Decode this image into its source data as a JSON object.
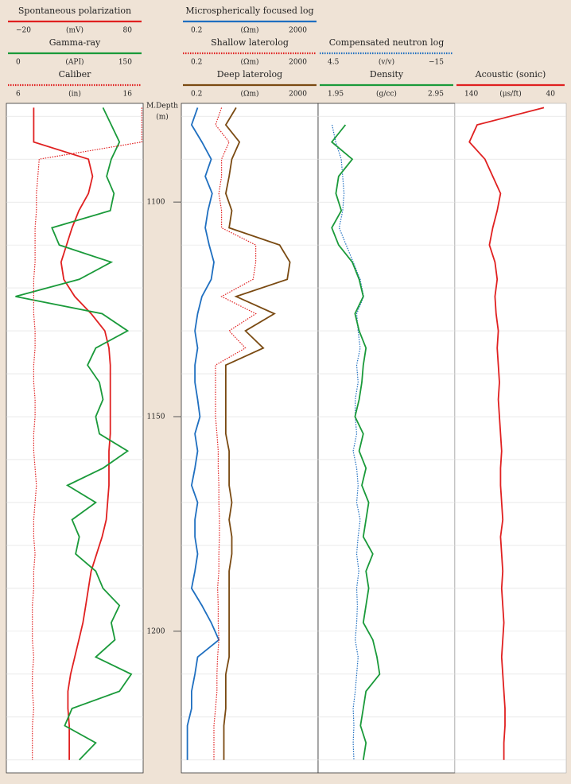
{
  "chart_data": {
    "type": "well-log",
    "depth_label": "M.Depth",
    "depth_unit": "(m)",
    "ylim": [
      1077,
      1233
    ],
    "yticks": [
      1100,
      1150,
      1200
    ],
    "ygrid": [
      1080,
      1090,
      1100,
      1110,
      1120,
      1130,
      1140,
      1150,
      1160,
      1170,
      1180,
      1190,
      1200,
      1210,
      1220,
      1230
    ],
    "depth": [
      1078,
      1082,
      1086,
      1090,
      1094,
      1098,
      1102,
      1106,
      1110,
      1114,
      1118,
      1122,
      1126,
      1130,
      1134,
      1138,
      1142,
      1146,
      1150,
      1154,
      1158,
      1162,
      1166,
      1170,
      1174,
      1178,
      1182,
      1186,
      1190,
      1194,
      1198,
      1202,
      1206,
      1210,
      1214,
      1218,
      1222,
      1226,
      1230
    ],
    "tracks": [
      {
        "log": false,
        "curves": [
          {
            "name": "Spontaneous polarization",
            "color": "#e02020",
            "style": "solid",
            "unit": "(mV)",
            "scale": [
              {
                "value": -20,
                "label": "−20"
              },
              80
            ],
            "values": [
              0,
              0,
              0,
              40,
              43,
              40,
              33,
              28,
              24,
              20,
              22,
              30,
              42,
              52,
              55,
              56,
              56,
              56,
              56,
              56,
              55,
              55,
              55,
              54,
              53,
              50,
              46,
              42,
              40,
              38,
              36,
              33,
              30,
              27,
              25,
              25,
              26,
              26,
              26
            ]
          },
          {
            "name": "Gamma-ray",
            "color": "#1a9a3a",
            "style": "solid",
            "unit": "(API)",
            "scale": [
              0,
              150
            ],
            "values": [
              106,
              115,
              124,
              115,
              110,
              118,
              114,
              50,
              58,
              115,
              80,
              10,
              105,
              133,
              98,
              89,
              102,
              106,
              98,
              102,
              133,
              106,
              67,
              98,
              72,
              80,
              76,
              98,
              106,
              124,
              115,
              119,
              98,
              137,
              124,
              72,
              64,
              98,
              80
            ]
          },
          {
            "name": "Caliber",
            "color": "#e02020",
            "style": "dotted",
            "unit": "(in)",
            "scale": [
              6,
              16
            ],
            "values": [
              15.9,
              15.9,
              15.9,
              8.4,
              8.3,
              8.2,
              8.2,
              8.1,
              8.1,
              8.1,
              8.0,
              8.0,
              8.0,
              8.1,
              8.1,
              8.0,
              8.0,
              8.1,
              8.1,
              8.0,
              8.0,
              8.1,
              8.2,
              8.1,
              8.0,
              8.0,
              8.1,
              8.0,
              8.0,
              7.9,
              7.9,
              7.9,
              8.0,
              7.9,
              7.9,
              8.0,
              7.9,
              7.9,
              7.9
            ]
          }
        ]
      },
      {
        "log": true,
        "curves": [
          {
            "name": "Microspherically focused log",
            "color": "#1f6fc0",
            "style": "solid",
            "unit": "(Ωm)",
            "scale": [
              0.2,
              2000
            ],
            "values": [
              0.6,
              0.4,
              0.8,
              1.5,
              1.0,
              1.6,
              1.2,
              1.0,
              1.3,
              1.8,
              1.5,
              0.8,
              0.6,
              0.5,
              0.6,
              0.5,
              0.5,
              0.6,
              0.7,
              0.5,
              0.6,
              0.5,
              0.4,
              0.6,
              0.5,
              0.5,
              0.6,
              0.5,
              0.4,
              0.8,
              1.5,
              2.5,
              0.6,
              0.5,
              0.4,
              0.4,
              0.3,
              0.3,
              0.3
            ]
          },
          {
            "name": "Shallow laterolog",
            "color": "#e02020",
            "style": "dotted",
            "unit": "(Ωm)",
            "scale": [
              0.2,
              2000
            ],
            "values": [
              3,
              2,
              5,
              3,
              3,
              2.5,
              3,
              3,
              30,
              30,
              25,
              3,
              30,
              5,
              15,
              2,
              2,
              2,
              2,
              2.2,
              2.4,
              2.4,
              2.5,
              2.5,
              2.6,
              2.6,
              2.5,
              2.5,
              2.3,
              2.4,
              2.4,
              2.5,
              2.3,
              2.2,
              2.2,
              2,
              1.8,
              1.8,
              1.8
            ]
          },
          {
            "name": "Deep laterolog",
            "color": "#7a4a12",
            "style": "solid",
            "unit": "(Ωm)",
            "scale": [
              0.2,
              2000
            ],
            "values": [
              8,
              4,
              10,
              6,
              5,
              4,
              6,
              5,
              150,
              300,
              250,
              8,
              105,
              15,
              50,
              4,
              4,
              4,
              4,
              4,
              5,
              5,
              5,
              6,
              5,
              6,
              6,
              5,
              5,
              5,
              5,
              5,
              5,
              4,
              4,
              4,
              3.5,
              3.5,
              3.5
            ]
          }
        ]
      },
      {
        "log": false,
        "curves": [
          {
            "name": "Compensated neutron log",
            "color": "#1f6fc0",
            "style": "dotted",
            "unit": "(v/v)",
            "scale": [
              4.5,
              {
                "value": -15,
                "label": "−15"
              }
            ],
            "values": [
              null,
              2.5,
              2.0,
              1.2,
              1.0,
              0.8,
              1.0,
              1.5,
              0.5,
              -0.5,
              -1.5,
              -2.0,
              -1.0,
              -1.2,
              -1.5,
              -1.0,
              -1.2,
              -0.8,
              -0.8,
              -1.0,
              -0.5,
              -1.0,
              -1.2,
              -1.0,
              -1.5,
              -1.2,
              -1.0,
              -1.3,
              -1.0,
              -1.1,
              -1.0,
              -0.8,
              -1.2,
              -1.0,
              -0.8,
              -0.5,
              -0.6,
              -0.5,
              -0.6
            ]
          },
          {
            "name": "Density",
            "color": "#1a9a3a",
            "style": "solid",
            "unit": "(g/cc)",
            "scale": [
              1.95,
              2.95
            ],
            "values": [
              null,
              2.15,
              2.05,
              2.2,
              2.1,
              2.08,
              2.12,
              2.05,
              2.1,
              2.2,
              2.25,
              2.28,
              2.22,
              2.25,
              2.3,
              2.28,
              2.27,
              2.25,
              2.22,
              2.28,
              2.25,
              2.3,
              2.27,
              2.32,
              2.3,
              2.28,
              2.35,
              2.3,
              2.32,
              2.3,
              2.28,
              2.35,
              2.38,
              2.4,
              2.3,
              2.28,
              2.26,
              2.3,
              2.28
            ]
          }
        ]
      },
      {
        "log": false,
        "curves": [
          {
            "name": "Acoustic (sonic)",
            "color": "#e02020",
            "style": "solid",
            "unit": "(μs/ft)",
            "scale": [
              140,
              40
            ],
            "values": [
              60,
              120,
              127,
              113,
              106,
              99,
              102,
              106,
              109,
              104,
              102,
              104,
              103,
              101,
              102,
              101,
              100,
              101,
              100,
              99,
              98,
              99,
              99,
              98,
              97,
              99,
              98,
              97,
              98,
              97,
              96,
              97,
              98,
              97,
              96,
              95,
              95,
              96,
              96
            ]
          }
        ]
      }
    ]
  }
}
